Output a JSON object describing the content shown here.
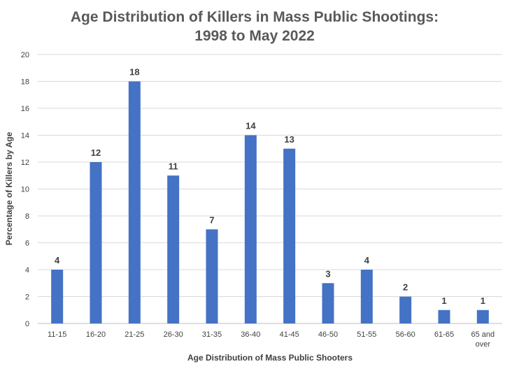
{
  "chart_data": {
    "type": "bar",
    "title_lines": [
      "Age Distribution of Killers in Mass Public Shootings:",
      "1998 to May 2022"
    ],
    "xlabel": "Age Distribution of Mass Public Shooters",
    "ylabel": "Percentage of Killers by Age",
    "categories": [
      "11-15",
      "16-20",
      "21-25",
      "26-30",
      "31-35",
      "36-40",
      "41-45",
      "46-50",
      "51-55",
      "56-60",
      "61-65",
      "65 and over"
    ],
    "values": [
      4,
      12,
      18,
      11,
      7,
      14,
      13,
      3,
      4,
      2,
      1,
      1
    ],
    "ylim": [
      0,
      20
    ],
    "yticks": [
      "0",
      "2",
      "4",
      "6",
      "8",
      "10",
      "12",
      "14",
      "16",
      "18",
      "20"
    ],
    "grid": true,
    "legend": "none",
    "bar_color": "#4472C4",
    "grid_color": "#d9d9d9"
  }
}
